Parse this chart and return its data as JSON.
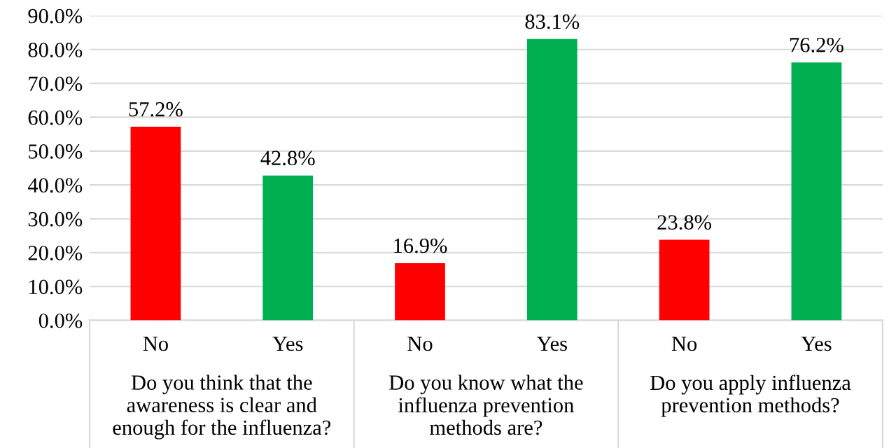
{
  "chart_data": {
    "type": "bar",
    "categories": [
      "No",
      "Yes",
      "No",
      "Yes",
      "No",
      "Yes"
    ],
    "values": [
      57.2,
      42.8,
      16.9,
      83.1,
      23.8,
      76.2
    ],
    "colors": [
      "#ff0000",
      "#00b050",
      "#ff0000",
      "#00b050",
      "#ff0000",
      "#00b050"
    ],
    "value_labels": [
      "57.2%",
      "42.8%",
      "16.9%",
      "83.1%",
      "23.8%",
      "76.2%"
    ],
    "ylim": [
      0,
      90
    ],
    "yticks": [
      {
        "value": 0,
        "label": "0.0%"
      },
      {
        "value": 10,
        "label": "10.0%"
      },
      {
        "value": 20,
        "label": "20.0%"
      },
      {
        "value": 30,
        "label": "30.0%"
      },
      {
        "value": 40,
        "label": "40.0%"
      },
      {
        "value": 50,
        "label": "50.0%"
      },
      {
        "value": 60,
        "label": "60.0%"
      },
      {
        "value": 70,
        "label": "70.0%"
      },
      {
        "value": 80,
        "label": "80.0%"
      },
      {
        "value": 90,
        "label": "90.0%"
      }
    ],
    "grid": "y",
    "annotations": [
      "Do you think that the awareness is clear and enough for the influenza?",
      "Do you know what the influenza prevention methods are?",
      "Do you apply influenza prevention methods?"
    ]
  }
}
